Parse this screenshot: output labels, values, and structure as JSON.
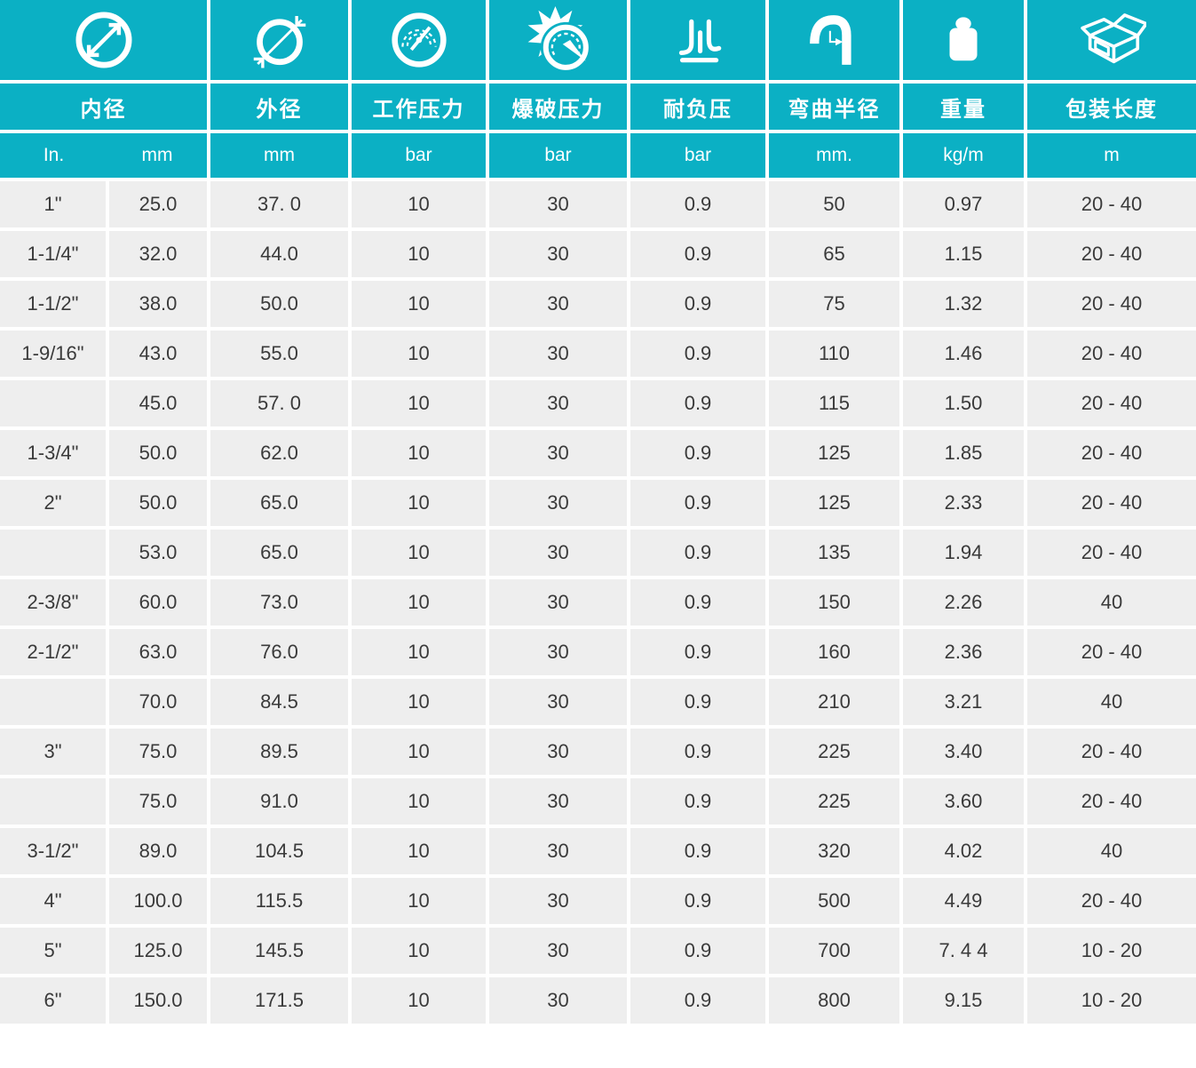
{
  "colors": {
    "teal": "#0bb0c4",
    "cell_bg": "#eeeeee",
    "text": "#3a3a3a",
    "header_text": "#ffffff"
  },
  "chart_data": {
    "type": "table",
    "title": "",
    "column_groups": [
      {
        "label": "内径",
        "icon": "inner-diameter-icon",
        "units": [
          "In.",
          "mm"
        ]
      },
      {
        "label": "外径",
        "icon": "outer-diameter-icon",
        "units": [
          "mm"
        ]
      },
      {
        "label": "工作压力",
        "icon": "pressure-gauge-icon",
        "units": [
          "bar"
        ]
      },
      {
        "label": "爆破压力",
        "icon": "burst-pressure-icon",
        "units": [
          "bar"
        ]
      },
      {
        "label": "耐负压",
        "icon": "vacuum-icon",
        "units": [
          "bar"
        ]
      },
      {
        "label": "弯曲半径",
        "icon": "bend-radius-icon",
        "units": [
          "mm."
        ]
      },
      {
        "label": "重量",
        "icon": "weight-icon",
        "units": [
          "kg/m"
        ]
      },
      {
        "label": "包装长度",
        "icon": "package-icon",
        "units": [
          "m"
        ]
      }
    ],
    "rows": [
      [
        "1\"",
        "25.0",
        "37. 0",
        "10",
        "30",
        "0.9",
        "50",
        "0.97",
        "20 - 40"
      ],
      [
        "1-1/4\"",
        "32.0",
        "44.0",
        "10",
        "30",
        "0.9",
        "65",
        "1.15",
        "20 - 40"
      ],
      [
        "1-1/2\"",
        "38.0",
        "50.0",
        "10",
        "30",
        "0.9",
        "75",
        "1.32",
        "20 - 40"
      ],
      [
        "1-9/16\"",
        "43.0",
        "55.0",
        "10",
        "30",
        "0.9",
        "110",
        "1.46",
        "20 - 40"
      ],
      [
        "",
        "45.0",
        "57. 0",
        "10",
        "30",
        "0.9",
        "115",
        "1.50",
        "20 - 40"
      ],
      [
        "1-3/4\"",
        "50.0",
        "62.0",
        "10",
        "30",
        "0.9",
        "125",
        "1.85",
        "20 - 40"
      ],
      [
        "2\"",
        "50.0",
        "65.0",
        "10",
        "30",
        "0.9",
        "125",
        "2.33",
        "20 - 40"
      ],
      [
        "",
        "53.0",
        "65.0",
        "10",
        "30",
        "0.9",
        "135",
        "1.94",
        "20 - 40"
      ],
      [
        "2-3/8\"",
        "60.0",
        "73.0",
        "10",
        "30",
        "0.9",
        "150",
        "2.26",
        "40"
      ],
      [
        "2-1/2\"",
        "63.0",
        "76.0",
        "10",
        "30",
        "0.9",
        "160",
        "2.36",
        "20 - 40"
      ],
      [
        "",
        "70.0",
        "84.5",
        "10",
        "30",
        "0.9",
        "210",
        "3.21",
        "40"
      ],
      [
        "3\"",
        "75.0",
        "89.5",
        "10",
        "30",
        "0.9",
        "225",
        "3.40",
        "20 - 40"
      ],
      [
        "",
        "75.0",
        "91.0",
        "10",
        "30",
        "0.9",
        "225",
        "3.60",
        "20 - 40"
      ],
      [
        "3-1/2\"",
        "89.0",
        "104.5",
        "10",
        "30",
        "0.9",
        "320",
        "4.02",
        "40"
      ],
      [
        "4\"",
        "100.0",
        "115.5",
        "10",
        "30",
        "0.9",
        "500",
        "4.49",
        "20 - 40"
      ],
      [
        "5\"",
        "125.0",
        "145.5",
        "10",
        "30",
        "0.9",
        "700",
        "7. 4 4",
        "10 - 20"
      ],
      [
        "6\"",
        "150.0",
        "171.5",
        "10",
        "30",
        "0.9",
        "800",
        "9.15",
        "10 - 20"
      ]
    ]
  }
}
